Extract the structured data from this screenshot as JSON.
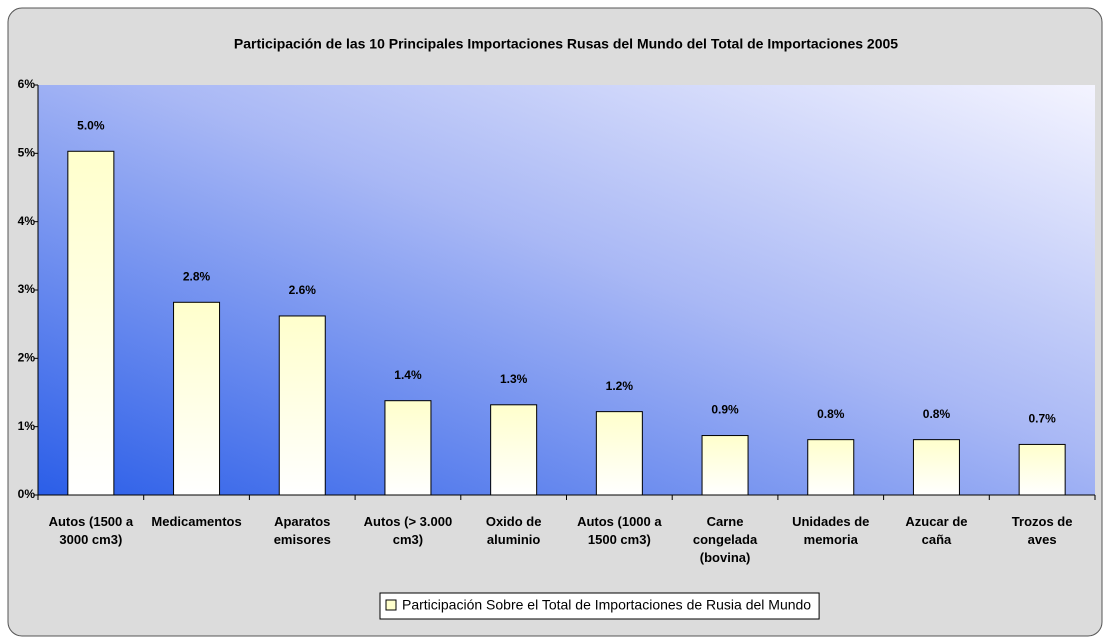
{
  "chart_data": {
    "type": "bar",
    "title": "Participación de las 10 Principales Importaciones Rusas del Mundo del Total de Importaciones 2005",
    "categories": [
      "Autos (1500 a\n3000 cm3)",
      "Medicamentos",
      "Aparatos\nemisores",
      "Autos (> 3.000\ncm3)",
      "Oxido de\naluminio",
      "Autos (1000 a\n1500 cm3)",
      "Carne\ncongelada\n(bovina)",
      "Unidades de\nmemoria",
      "Azucar de\ncaña",
      "Trozos de\naves"
    ],
    "series": [
      {
        "name": "Participación Sobre el Total de Importaciones de Rusia del Mundo",
        "color": "#ffffcc",
        "values": [
          5.03,
          2.82,
          2.62,
          1.38,
          1.32,
          1.22,
          0.87,
          0.81,
          0.81,
          0.74
        ],
        "value_labels": [
          "5.0%",
          "2.8%",
          "2.6%",
          "1.4%",
          "1.3%",
          "1.2%",
          "0.9%",
          "0.8%",
          "0.8%",
          "0.7%"
        ]
      }
    ],
    "ylim": [
      0,
      6
    ],
    "yticks": [
      {
        "value": 0,
        "label": "0%"
      },
      {
        "value": 1,
        "label": "1%"
      },
      {
        "value": 2,
        "label": "2%"
      },
      {
        "value": 3,
        "label": "3%"
      },
      {
        "value": 4,
        "label": "4%"
      },
      {
        "value": 5,
        "label": "5%"
      },
      {
        "value": 6,
        "label": "6%"
      }
    ],
    "legend": "bottom"
  }
}
